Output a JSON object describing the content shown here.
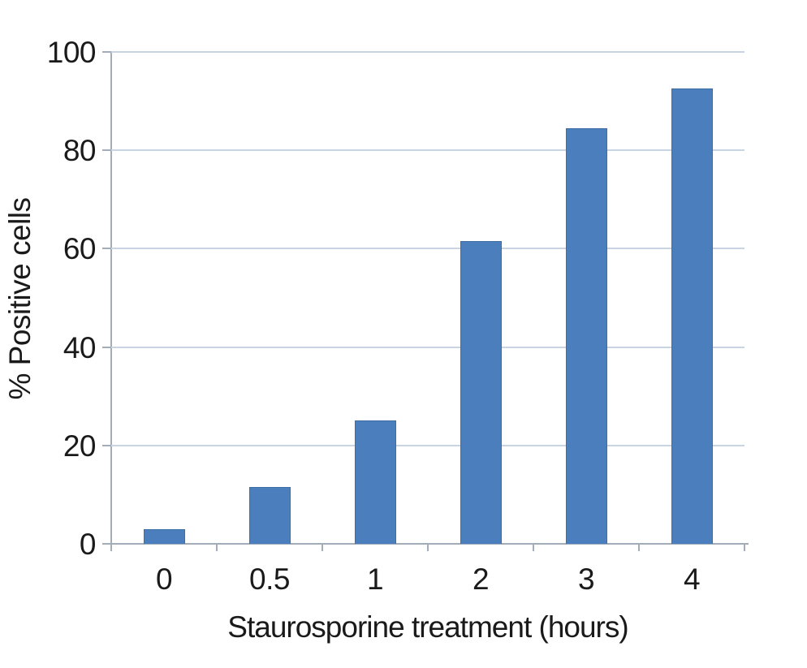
{
  "chart_data": {
    "type": "bar",
    "title": "",
    "categories": [
      "0",
      "0.5",
      "1",
      "2",
      "3",
      "4"
    ],
    "values": [
      3,
      11.5,
      25,
      61.5,
      84.5,
      92.5
    ],
    "series_name": "% Positive cells",
    "xlabel": "Staurosporine treatment (hours)",
    "ylabel": "% Positive cells",
    "ylim": [
      0,
      100
    ],
    "yticks": [
      0,
      20,
      40,
      60,
      80,
      100
    ],
    "grid": true,
    "legend": false,
    "colors": {
      "bar_fill": "#4a7ebd",
      "bar_border": "#3d6fa5",
      "gridline": "#c9d4e2",
      "axis": "#a3adba",
      "tick": "#a3adba",
      "text": "#1a1a1a",
      "background": "#ffffff"
    }
  }
}
